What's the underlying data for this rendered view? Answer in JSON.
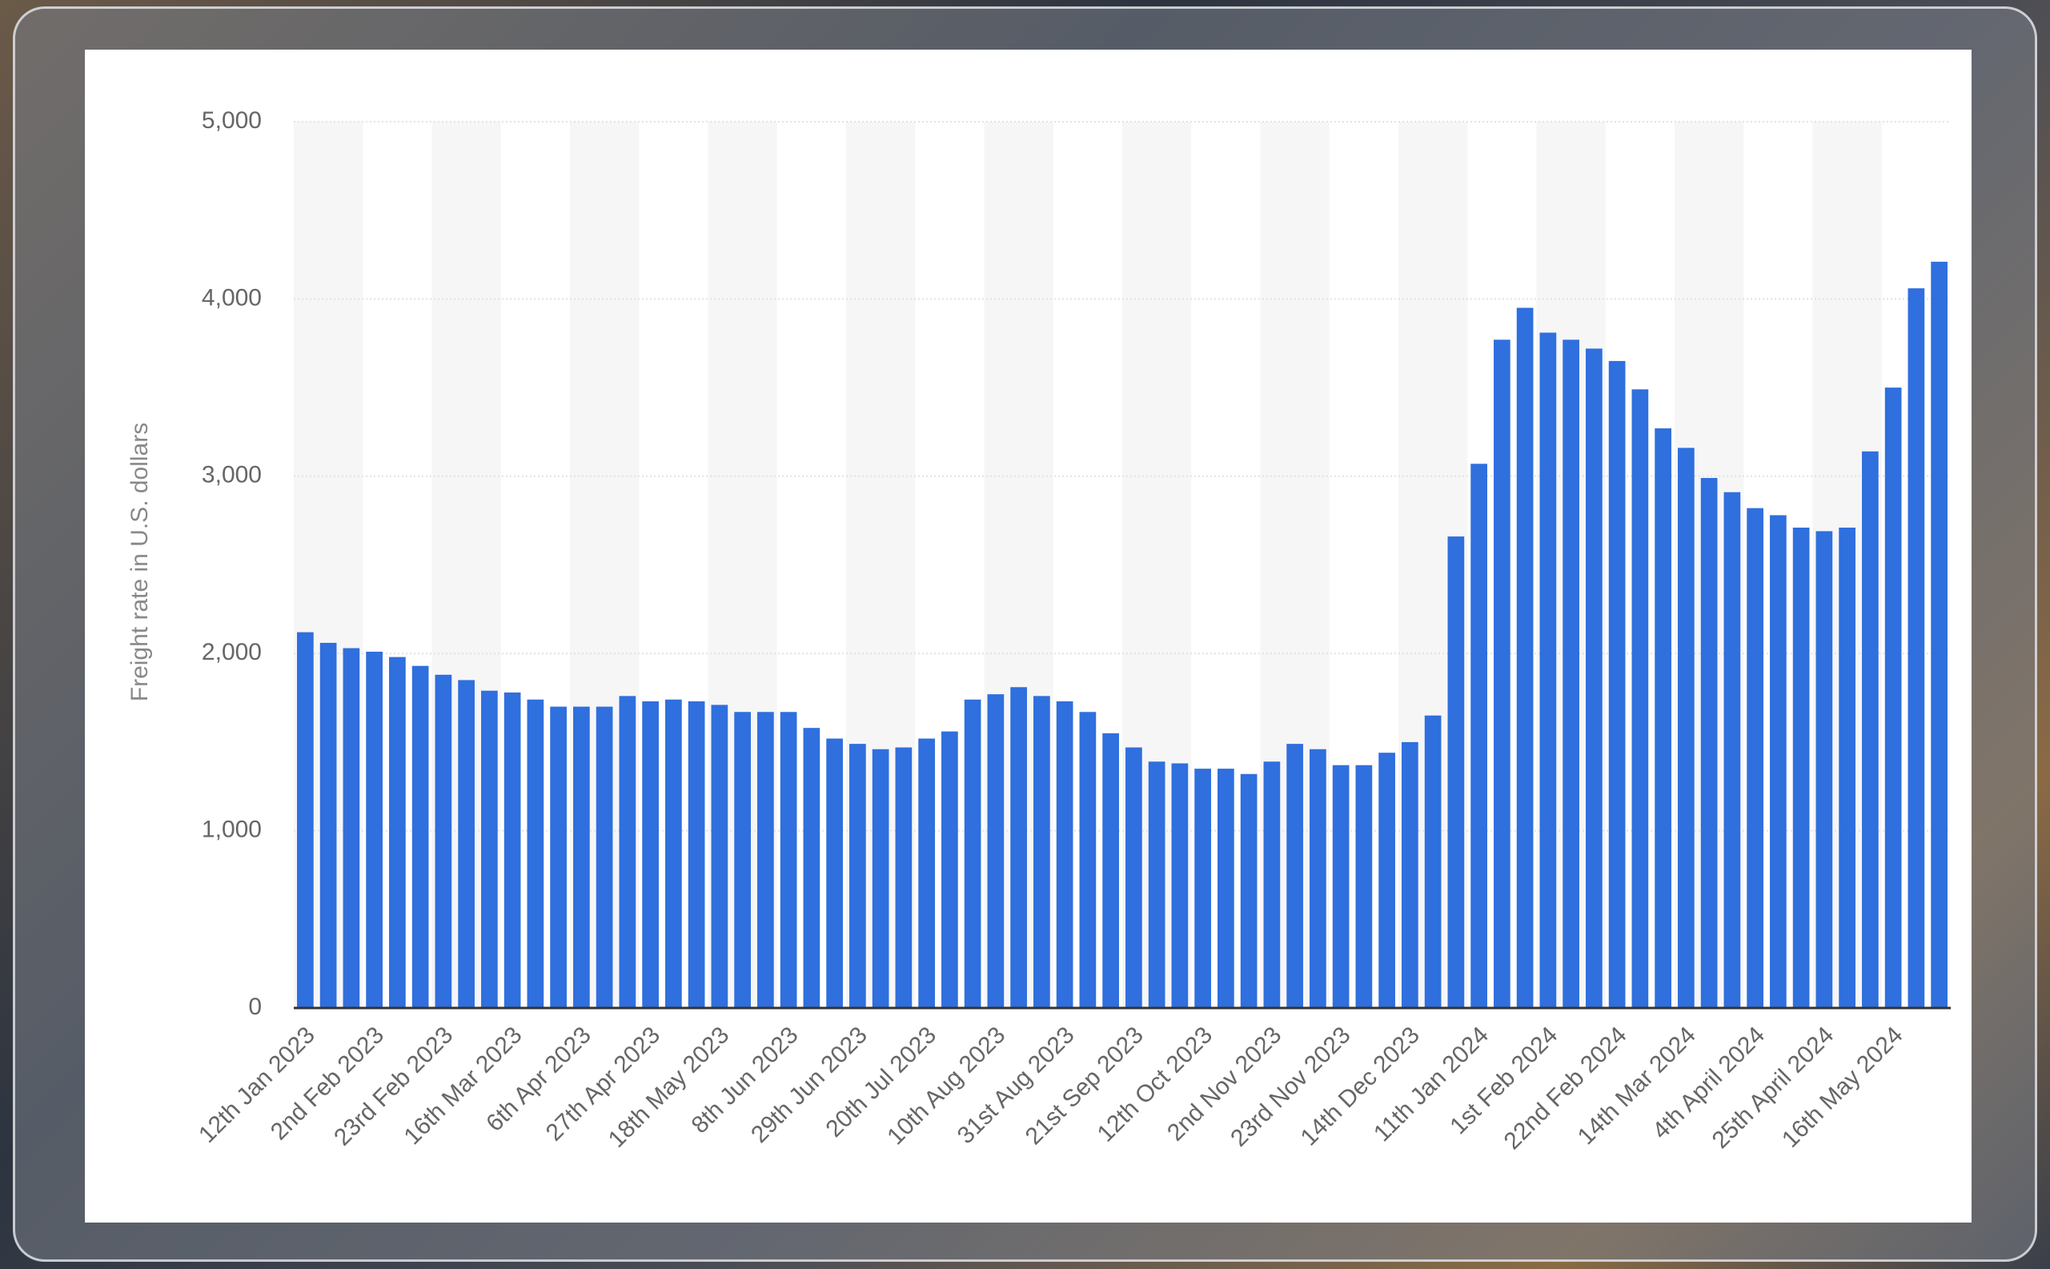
{
  "chart_data": {
    "type": "bar",
    "y_axis_label": "Freight rate in U.S. dollars",
    "categories": [
      "12th Jan 2023",
      null,
      null,
      "2nd Feb 2023",
      null,
      null,
      "23rd Feb 2023",
      null,
      null,
      "16th Mar 2023",
      null,
      null,
      "6th Apr 2023",
      null,
      null,
      "27th Apr 2023",
      null,
      null,
      "18th May 2023",
      null,
      null,
      "8th Jun 2023",
      null,
      null,
      "29th Jun 2023",
      null,
      null,
      "20th Jul 2023",
      null,
      null,
      "10th Aug 2023",
      null,
      null,
      "31st Aug 2023",
      null,
      null,
      "21st Sep 2023",
      null,
      null,
      "12th Oct 2023",
      null,
      null,
      "2nd Nov 2023",
      null,
      null,
      "23rd Nov 2023",
      null,
      null,
      "14th Dec 2023",
      null,
      null,
      "11th Jan 2024",
      null,
      null,
      "1st Feb 2024",
      null,
      null,
      "22nd Feb 2024",
      null,
      null,
      "14th Mar 2024",
      null,
      null,
      "4th April 2024",
      null,
      null,
      "25th April 2024",
      null,
      null,
      "16th May 2024",
      null,
      null
    ],
    "values": [
      2120,
      2060,
      2030,
      2010,
      1980,
      1930,
      1880,
      1850,
      1790,
      1780,
      1740,
      1700,
      1700,
      1700,
      1760,
      1730,
      1740,
      1730,
      1710,
      1670,
      1670,
      1670,
      1580,
      1520,
      1490,
      1460,
      1470,
      1520,
      1560,
      1740,
      1770,
      1810,
      1760,
      1730,
      1670,
      1550,
      1470,
      1390,
      1380,
      1350,
      1350,
      1320,
      1390,
      1490,
      1460,
      1370,
      1370,
      1440,
      1500,
      1650,
      2660,
      3070,
      3770,
      3950,
      3810,
      3770,
      3720,
      3650,
      3490,
      3270,
      3160,
      2990,
      2910,
      2820,
      2780,
      2710,
      2690,
      2710,
      3140,
      3500,
      4060,
      4210
    ],
    "color": "#2f6fde",
    "ylim": [
      0,
      5000
    ],
    "yticks": [
      0,
      {
        "value": 1000,
        "label": "1,000"
      },
      {
        "value": 2000,
        "label": "2,000"
      },
      {
        "value": 3000,
        "label": "3,000"
      },
      {
        "value": 4000,
        "label": "4,000"
      },
      {
        "value": 5000,
        "label": "5,000"
      }
    ],
    "grid": true
  }
}
